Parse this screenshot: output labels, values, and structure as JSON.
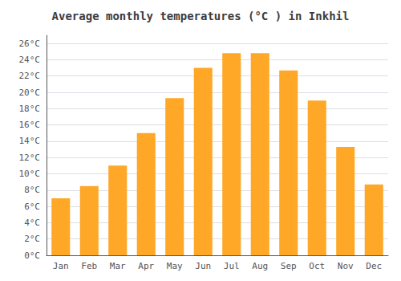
{
  "chart_data": {
    "type": "bar",
    "title": "Average monthly temperatures (°C ) in Inkhil",
    "categories": [
      "Jan",
      "Feb",
      "Mar",
      "Apr",
      "May",
      "Jun",
      "Jul",
      "Aug",
      "Sep",
      "Oct",
      "Nov",
      "Dec"
    ],
    "values": [
      7,
      8.5,
      11,
      15,
      19.3,
      23,
      24.8,
      24.8,
      22.7,
      19,
      13.3,
      8.7
    ],
    "color": "#FFA726",
    "ylim": [
      0,
      27
    ],
    "yticks": [
      {
        "value": 0,
        "label": "0°C"
      },
      {
        "value": 2,
        "label": "2°C"
      },
      {
        "value": 4,
        "label": "4°C"
      },
      {
        "value": 6,
        "label": "6°C"
      },
      {
        "value": 8,
        "label": "8°C"
      },
      {
        "value": 10,
        "label": "10°C"
      },
      {
        "value": 12,
        "label": "12°C"
      },
      {
        "value": 14,
        "label": "14°C"
      },
      {
        "value": 16,
        "label": "16°C"
      },
      {
        "value": 18,
        "label": "18°C"
      },
      {
        "value": 20,
        "label": "20°C"
      },
      {
        "value": 22,
        "label": "22°C"
      },
      {
        "value": 24,
        "label": "24°C"
      },
      {
        "value": 26,
        "label": "26°C"
      }
    ],
    "grid": true
  }
}
